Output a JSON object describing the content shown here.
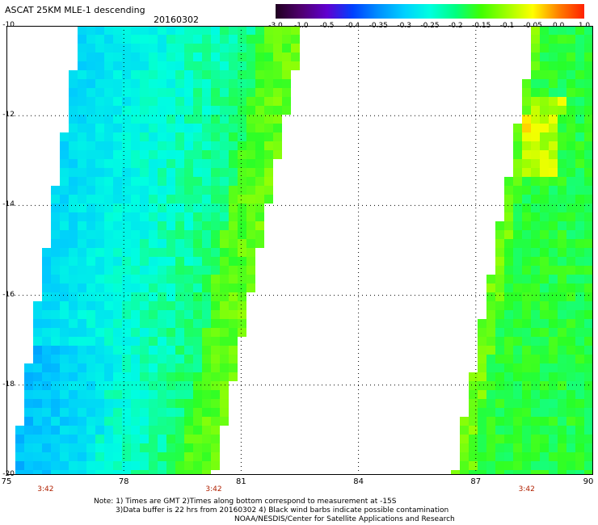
{
  "header": {
    "title": "ASCAT 25KM MLE-1 descending",
    "date": "20160302"
  },
  "colorbar": {
    "labels": [
      "-3.0",
      "-1.0",
      "-0.5",
      "-0.4",
      "-0.35",
      "-0.3",
      "-0.25",
      "-0.2",
      "-0.15",
      "-0.1",
      "-0.05",
      "0.0",
      "1.0"
    ],
    "colors": [
      "#200020",
      "#500070",
      "#6000d0",
      "#0040ff",
      "#0090ff",
      "#00d0ff",
      "#00ffe0",
      "#00ff80",
      "#40ff00",
      "#a0ff00",
      "#ffff00",
      "#ff8000",
      "#ff2000"
    ]
  },
  "axes": {
    "lat_labels": [
      "-10",
      "-12",
      "-14",
      "-16",
      "-18",
      "-20"
    ],
    "lat_values": [
      -10,
      -12,
      -14,
      -16,
      -18,
      -20
    ],
    "lon_labels": [
      "75",
      "78",
      "81",
      "84",
      "87",
      "90"
    ],
    "lon_values": [
      75,
      78,
      81,
      84,
      87,
      90
    ],
    "lon_range": [
      75,
      90
    ],
    "lat_range": [
      -10,
      -20
    ],
    "grid": true
  },
  "time_labels": [
    {
      "text": "3:42",
      "lon": 76
    },
    {
      "text": "3:42",
      "lon": 80.3
    },
    {
      "text": "3:42",
      "lon": 88.3
    }
  ],
  "notes": [
    "Note: 1) Times are GMT 2)Times along bottom correspond to measurement at -15S",
    "3)Data buffer is 22 hrs from 20160302 4) Black wind barbs indicate possible contamination",
    "NOAA/NESDIS/Center for Satellite Applications and Research"
  ]
}
